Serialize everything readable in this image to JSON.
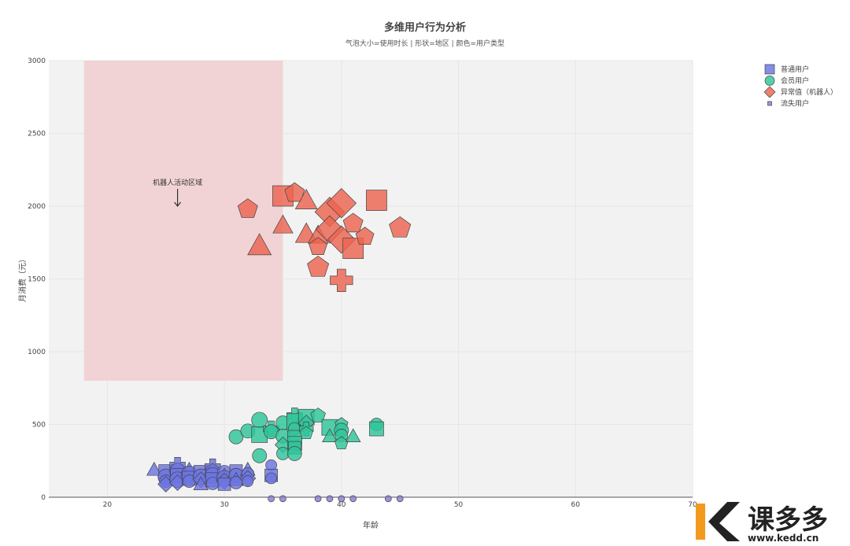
{
  "chart_data": {
    "type": "scatter",
    "title": "多维用户行为分析",
    "subtitle": "气泡大小=使用时长 | 形状=地区 | 颜色=用户类型",
    "xlabel": "年龄",
    "ylabel": "月消费（元）",
    "xlim": [
      15,
      70
    ],
    "ylim": [
      0,
      3000
    ],
    "x_ticks": [
      20,
      30,
      40,
      50,
      60,
      70
    ],
    "y_ticks": [
      0,
      500,
      1000,
      1500,
      2000,
      2500,
      3000
    ],
    "grid": true,
    "legend_position": "top-right",
    "shaded_region": {
      "x": [
        18,
        35
      ],
      "y": [
        800,
        3000
      ],
      "color": "#f2d3d5"
    },
    "annotation": {
      "text": "机器人活动区域",
      "x": 26,
      "y": 2000
    },
    "series": [
      {
        "name": "普通用户",
        "color": "#6b74e0",
        "legend_symbol": "square",
        "points": [
          [
            24,
            190,
            "triangle",
            8
          ],
          [
            25,
            175,
            "square",
            9
          ],
          [
            25,
            140,
            "circle",
            10
          ],
          [
            25,
            110,
            "circle",
            8
          ],
          [
            25,
            90,
            "diamond",
            8
          ],
          [
            26,
            220,
            "cross",
            9
          ],
          [
            26,
            180,
            "circle",
            10
          ],
          [
            26,
            150,
            "square",
            9
          ],
          [
            26,
            120,
            "circle",
            10
          ],
          [
            26,
            100,
            "diamond",
            8
          ],
          [
            27,
            190,
            "triangle",
            8
          ],
          [
            27,
            160,
            "circle",
            10
          ],
          [
            27,
            130,
            "square",
            9
          ],
          [
            27,
            110,
            "circle",
            8
          ],
          [
            28,
            170,
            "square",
            9
          ],
          [
            28,
            140,
            "circle",
            10
          ],
          [
            28,
            120,
            "diamond",
            8
          ],
          [
            28,
            90,
            "triangle",
            8
          ],
          [
            29,
            210,
            "cross",
            9
          ],
          [
            29,
            180,
            "pentagon",
            9
          ],
          [
            29,
            150,
            "circle",
            10
          ],
          [
            29,
            120,
            "square",
            9
          ],
          [
            29,
            95,
            "circle",
            8
          ],
          [
            30,
            170,
            "circle",
            9
          ],
          [
            30,
            150,
            "triangle",
            8
          ],
          [
            30,
            130,
            "circle",
            10
          ],
          [
            30,
            110,
            "diamond",
            8
          ],
          [
            30,
            90,
            "square",
            8
          ],
          [
            31,
            180,
            "square",
            8
          ],
          [
            31,
            150,
            "circle",
            9
          ],
          [
            31,
            120,
            "triangle",
            8
          ],
          [
            31,
            100,
            "circle",
            8
          ],
          [
            32,
            190,
            "triangle",
            8
          ],
          [
            32,
            160,
            "circle",
            8
          ],
          [
            32,
            130,
            "diamond",
            8
          ],
          [
            32,
            110,
            "circle",
            7
          ],
          [
            34,
            220,
            "circle",
            7
          ],
          [
            34,
            150,
            "square",
            8
          ],
          [
            34,
            130,
            "circle",
            7
          ]
        ]
      },
      {
        "name": "会员用户",
        "color": "#2ec49a",
        "legend_symbol": "circle",
        "points": [
          [
            31,
            415,
            "circle",
            9
          ],
          [
            32,
            455,
            "circle",
            9
          ],
          [
            33,
            530,
            "circle",
            10
          ],
          [
            33,
            430,
            "square",
            10
          ],
          [
            33,
            285,
            "circle",
            9
          ],
          [
            34,
            470,
            "cross",
            9
          ],
          [
            34,
            450,
            "circle",
            9
          ],
          [
            35,
            510,
            "circle",
            9
          ],
          [
            35,
            420,
            "circle",
            9
          ],
          [
            35,
            360,
            "diamond",
            8
          ],
          [
            35,
            300,
            "circle",
            8
          ],
          [
            36,
            560,
            "cross",
            9
          ],
          [
            36,
            520,
            "square",
            10
          ],
          [
            36,
            470,
            "circle",
            8
          ],
          [
            36,
            410,
            "square",
            9
          ],
          [
            36,
            370,
            "square",
            9
          ],
          [
            36,
            340,
            "square",
            8
          ],
          [
            36,
            300,
            "circle",
            9
          ],
          [
            37,
            550,
            "square",
            10
          ],
          [
            37,
            510,
            "diamond",
            8
          ],
          [
            37,
            470,
            "cross",
            8
          ],
          [
            37,
            440,
            "pentagon",
            8
          ],
          [
            38,
            560,
            "pentagon",
            9
          ],
          [
            39,
            480,
            "square",
            10
          ],
          [
            39,
            420,
            "triangle",
            8
          ],
          [
            40,
            500,
            "pentagon",
            8
          ],
          [
            40,
            460,
            "circle",
            9
          ],
          [
            40,
            425,
            "circle",
            8
          ],
          [
            40,
            370,
            "pentagon",
            8
          ],
          [
            41,
            420,
            "triangle",
            8
          ],
          [
            43,
            500,
            "circle",
            8
          ],
          [
            43,
            470,
            "square",
            9
          ]
        ]
      },
      {
        "name": "异常值（机器人）",
        "color": "#ec6450",
        "legend_symbol": "diamond",
        "points": [
          [
            32,
            1980,
            "pentagon",
            12
          ],
          [
            33,
            1730,
            "triangle",
            13
          ],
          [
            35,
            2070,
            "square",
            13
          ],
          [
            35,
            1870,
            "triangle",
            11
          ],
          [
            36,
            2090,
            "pentagon",
            12
          ],
          [
            37,
            2040,
            "triangle",
            12
          ],
          [
            37,
            1810,
            "triangle",
            12
          ],
          [
            38,
            1800,
            "triangle",
            11
          ],
          [
            38,
            1720,
            "pentagon",
            11
          ],
          [
            38,
            1580,
            "pentagon",
            13
          ],
          [
            39,
            1960,
            "diamond",
            15
          ],
          [
            39,
            1840,
            "diamond",
            14
          ],
          [
            40,
            2020,
            "diamond",
            15
          ],
          [
            40,
            1770,
            "diamond",
            14
          ],
          [
            40,
            1490,
            "cross",
            13
          ],
          [
            41,
            1880,
            "pentagon",
            12
          ],
          [
            41,
            1710,
            "square",
            13
          ],
          [
            42,
            1790,
            "pentagon",
            11
          ],
          [
            43,
            2040,
            "square",
            13
          ],
          [
            45,
            1850,
            "pentagon",
            13
          ]
        ]
      },
      {
        "name": "流失用户",
        "color": "#8a7bd4",
        "legend_symbol": "square-small",
        "points": [
          [
            34,
            -10,
            "circle",
            4
          ],
          [
            35,
            -10,
            "circle",
            4
          ],
          [
            38,
            -10,
            "circle",
            4
          ],
          [
            39,
            -10,
            "circle",
            4
          ],
          [
            40,
            -10,
            "circle",
            4
          ],
          [
            41,
            -10,
            "circle",
            4
          ],
          [
            44,
            -10,
            "circle",
            4
          ],
          [
            45,
            -10,
            "circle",
            4
          ]
        ]
      }
    ]
  },
  "watermark": {
    "logo_text": "课多多",
    "url_text": "www.kedd.cn",
    "orange": "#f29a1d",
    "dark": "#222222"
  }
}
